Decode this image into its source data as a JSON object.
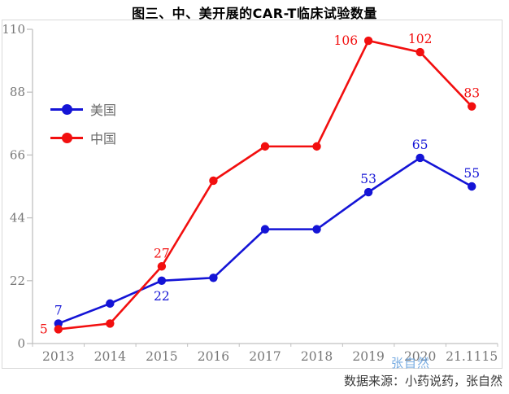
{
  "title": "图三、中、美开展的CAR-T临床试验数量",
  "source_note": "数据来源：小药说药，张自然",
  "watermark": "张自然",
  "colors": {
    "us": "#1414d6",
    "china": "#f20f0f",
    "axis": "#c0c0c0",
    "tick_text": "#787878",
    "legend_text": "#6b6b6b",
    "border": "#d9d9d9",
    "watermark": "#609edd",
    "source_text": "#3a3a3a",
    "title_text": "#000000"
  },
  "chart_data": {
    "type": "line",
    "title": "图三、中、美开展的CAR-T临床试验数量",
    "categories": [
      "2013",
      "2014",
      "2015",
      "2016",
      "2017",
      "2018",
      "2019",
      "2020",
      "21.1115"
    ],
    "series": [
      {
        "name": "美国",
        "color_key": "us",
        "values": [
          7,
          14,
          22,
          23,
          40,
          40,
          53,
          65,
          55
        ],
        "data_labels": [
          "7",
          null,
          "22",
          null,
          null,
          null,
          "53",
          "65",
          "55"
        ],
        "label_positions": [
          "above",
          null,
          "below",
          null,
          null,
          null,
          "above",
          "above",
          "above"
        ]
      },
      {
        "name": "中国",
        "color_key": "china",
        "values": [
          5,
          7,
          27,
          57,
          69,
          69,
          106,
          102,
          83
        ],
        "data_labels": [
          "5",
          null,
          "27",
          null,
          null,
          null,
          "106",
          "102",
          "83"
        ],
        "label_positions": [
          "left",
          null,
          "above",
          null,
          null,
          null,
          "left",
          "above",
          "above"
        ]
      }
    ],
    "yticks": [
      0,
      22,
      44,
      66,
      88,
      110
    ],
    "ylim": [
      0,
      110
    ],
    "grid": false,
    "legend_position": "upper-left-inside"
  }
}
